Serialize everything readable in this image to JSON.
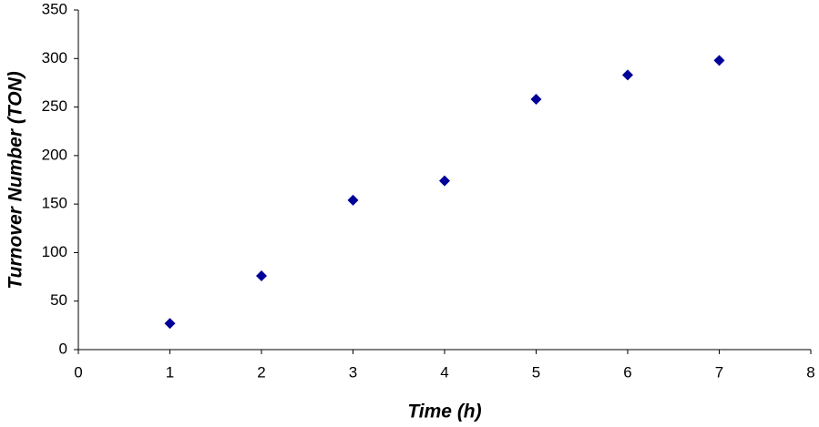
{
  "chart_data": {
    "type": "scatter",
    "x_label": "Time (h)",
    "y_label": "Turnover Number (TON)",
    "series": [
      {
        "color": "#000099",
        "x": [
          1,
          2,
          3,
          4,
          5,
          6,
          7
        ],
        "values": [
          27,
          76,
          154,
          174,
          258,
          283,
          298
        ]
      }
    ],
    "xlim": [
      0,
      8
    ],
    "xticks": [
      0,
      1,
      2,
      3,
      4,
      5,
      6,
      7,
      8
    ],
    "ylim": [
      0,
      350
    ],
    "yticks": [
      0,
      50,
      100,
      150,
      200,
      250,
      300,
      350
    ],
    "grid": false
  }
}
